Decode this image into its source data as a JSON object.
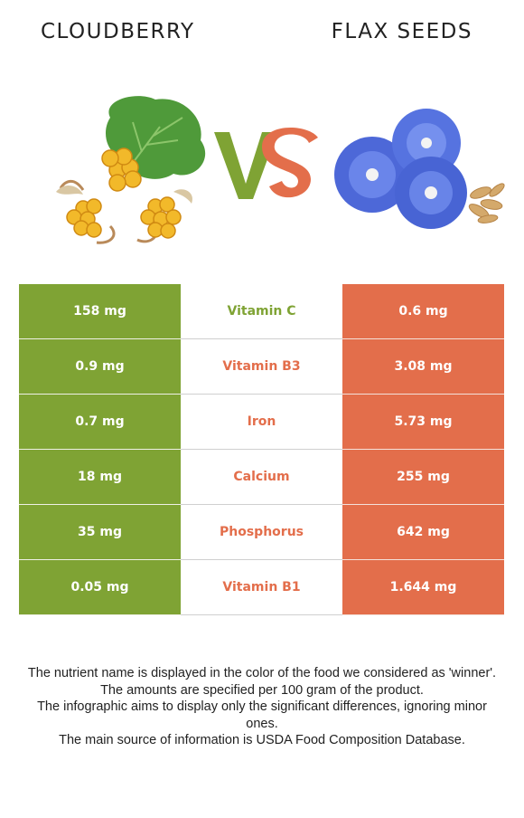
{
  "header": {
    "left_title": "CLOUDBERRY",
    "right_title": "FLAX SEEDS",
    "vs_text": "VS"
  },
  "colors": {
    "winner_left": "#7fa334",
    "winner_right": "#e36e4b"
  },
  "rows": [
    {
      "left": "158 mg",
      "nutrient": "Vitamin C",
      "right": "0.6 mg",
      "winner": "left"
    },
    {
      "left": "0.9 mg",
      "nutrient": "Vitamin B3",
      "right": "3.08 mg",
      "winner": "right"
    },
    {
      "left": "0.7 mg",
      "nutrient": "Iron",
      "right": "5.73 mg",
      "winner": "right"
    },
    {
      "left": "18 mg",
      "nutrient": "Calcium",
      "right": "255 mg",
      "winner": "right"
    },
    {
      "left": "35 mg",
      "nutrient": "Phosphorus",
      "right": "642 mg",
      "winner": "right"
    },
    {
      "left": "0.05 mg",
      "nutrient": "Vitamin B1",
      "right": "1.644 mg",
      "winner": "right"
    }
  ],
  "notes": [
    "The nutrient name is displayed in the color of the food we considered as 'winner'.",
    "The amounts are specified per 100 gram of the product.",
    "The infographic aims to display only the significant differences, ignoring minor ones.",
    "The main source of information is USDA Food Composition Database."
  ],
  "icons": {
    "left_food": "cloudberry-image",
    "right_food": "flax-flower-image"
  }
}
